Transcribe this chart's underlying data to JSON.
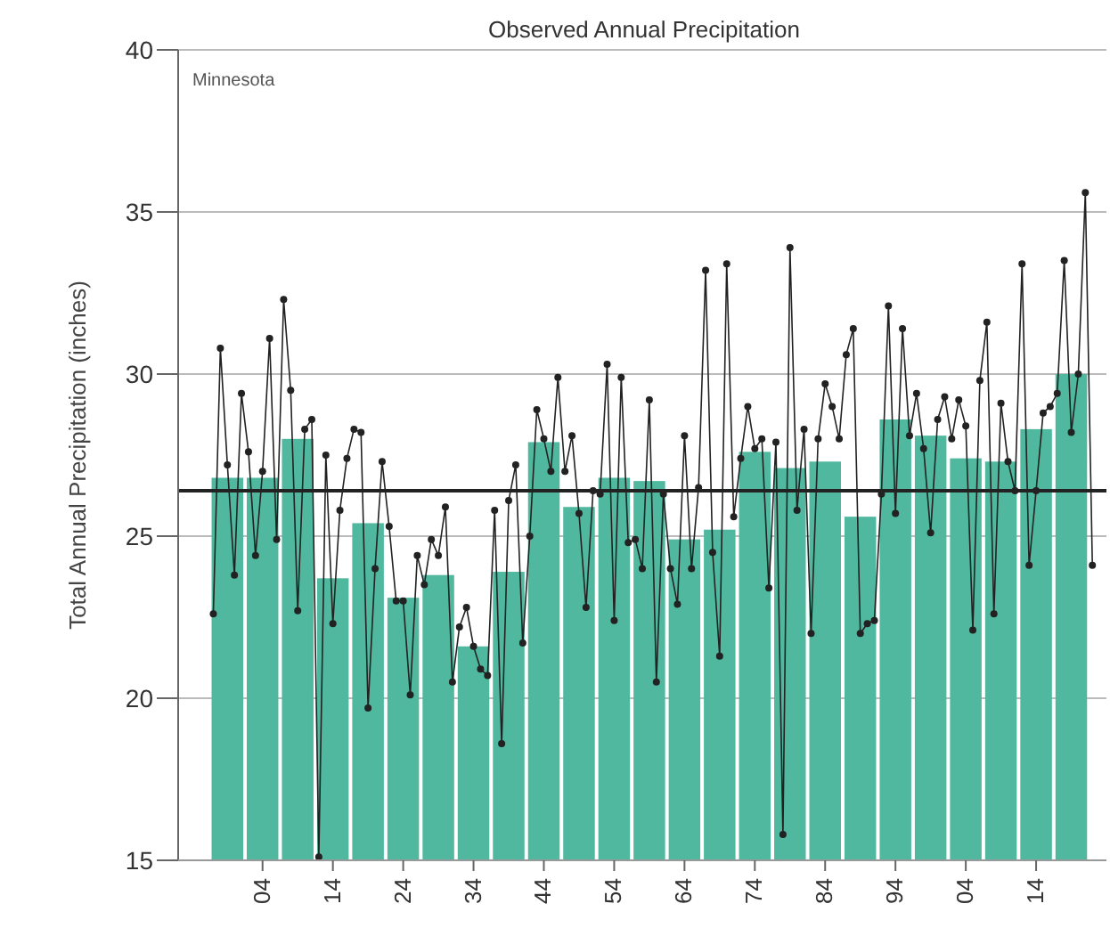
{
  "chart_data": {
    "type": "bar",
    "title": "Observed Annual Precipitation",
    "ylabel": "Total Annual Precipitation (inches)",
    "annotations": [
      "Minnesota"
    ],
    "xlim": [
      1892,
      2024
    ],
    "xticks": [
      {
        "value": 1904,
        "label": "04"
      },
      {
        "value": 1914,
        "label": "14"
      },
      {
        "value": 1924,
        "label": "24"
      },
      {
        "value": 1934,
        "label": "34"
      },
      {
        "value": 1944,
        "label": "44"
      },
      {
        "value": 1954,
        "label": "54"
      },
      {
        "value": 1964,
        "label": "64"
      },
      {
        "value": 1974,
        "label": "74"
      },
      {
        "value": 1984,
        "label": "84"
      },
      {
        "value": 1994,
        "label": "94"
      },
      {
        "value": 2004,
        "label": "04"
      },
      {
        "value": 2014,
        "label": "14"
      }
    ],
    "ylim": [
      15,
      40
    ],
    "yticks": [
      15,
      20,
      25,
      30,
      35,
      40
    ],
    "grid": "y",
    "ref_lines": [
      {
        "axis": "y",
        "value": 26.4,
        "color": "#222222"
      }
    ],
    "series": [
      {
        "color": "#4fb89f",
        "x": [
          1899,
          1904,
          1909,
          1914,
          1919,
          1924,
          1929,
          1934,
          1939,
          1944,
          1949,
          1954,
          1959,
          1964,
          1969,
          1974,
          1979,
          1984,
          1989,
          1994,
          1999,
          2004,
          2009,
          2014,
          2019
        ],
        "values": [
          26.8,
          26.8,
          28.0,
          23.7,
          25.4,
          23.1,
          23.8,
          21.6,
          23.9,
          27.9,
          25.9,
          26.8,
          26.7,
          24.9,
          25.2,
          27.6,
          27.1,
          27.3,
          25.6,
          28.6,
          28.1,
          27.4,
          27.3,
          28.3,
          30.0
        ]
      },
      {
        "type": "line",
        "color": "#222222",
        "marker": "circle",
        "x": [
          1897,
          1898,
          1899,
          1900,
          1901,
          1902,
          1903,
          1904,
          1905,
          1906,
          1907,
          1908,
          1909,
          1910,
          1911,
          1912,
          1913,
          1914,
          1915,
          1916,
          1917,
          1918,
          1919,
          1920,
          1921,
          1922,
          1923,
          1924,
          1925,
          1926,
          1927,
          1928,
          1929,
          1930,
          1931,
          1932,
          1933,
          1934,
          1935,
          1936,
          1937,
          1938,
          1939,
          1940,
          1941,
          1942,
          1943,
          1944,
          1945,
          1946,
          1947,
          1948,
          1949,
          1950,
          1951,
          1952,
          1953,
          1954,
          1955,
          1956,
          1957,
          1958,
          1959,
          1960,
          1961,
          1962,
          1963,
          1964,
          1965,
          1966,
          1967,
          1968,
          1969,
          1970,
          1971,
          1972,
          1973,
          1974,
          1975,
          1976,
          1977,
          1978,
          1979,
          1980,
          1981,
          1982,
          1983,
          1984,
          1985,
          1986,
          1987,
          1988,
          1989,
          1990,
          1991,
          1992,
          1993,
          1994,
          1995,
          1996,
          1997,
          1998,
          1999,
          2000,
          2001,
          2002,
          2003,
          2004,
          2005,
          2006,
          2007,
          2008,
          2009,
          2010,
          2011,
          2012,
          2013,
          2014,
          2015,
          2016,
          2017,
          2018,
          2019,
          2020,
          2021,
          2022
        ],
        "values": [
          22.6,
          30.8,
          27.2,
          23.8,
          29.4,
          27.6,
          24.4,
          27.0,
          31.1,
          24.9,
          32.3,
          29.5,
          22.7,
          28.3,
          28.6,
          15.1,
          27.5,
          22.3,
          25.8,
          27.4,
          28.3,
          28.2,
          19.7,
          24.0,
          27.3,
          25.3,
          23.0,
          23.0,
          20.1,
          24.4,
          23.5,
          24.9,
          24.4,
          25.9,
          20.5,
          22.2,
          22.8,
          21.6,
          20.9,
          20.7,
          25.8,
          18.6,
          26.1,
          27.2,
          21.7,
          25.0,
          28.9,
          28.0,
          27.0,
          29.9,
          27.0,
          28.1,
          25.7,
          22.8,
          26.4,
          26.3,
          30.3,
          22.4,
          29.9,
          24.8,
          24.9,
          24.0,
          29.2,
          20.5,
          26.3,
          24.0,
          22.9,
          28.1,
          24.0,
          26.5,
          33.2,
          24.5,
          21.3,
          33.4,
          25.6,
          27.4,
          29.0,
          27.7,
          28.0,
          23.4,
          27.9,
          15.8,
          33.9,
          25.8,
          28.3,
          22.0,
          28.0,
          29.7,
          29.0,
          28.0,
          30.6,
          31.4,
          22.0,
          22.3,
          22.4,
          26.3,
          32.1,
          25.7,
          31.4,
          28.1,
          29.4,
          27.7,
          25.1,
          28.6,
          29.3,
          28.0,
          29.2,
          28.4,
          22.1,
          29.8,
          31.6,
          22.6,
          29.1,
          27.3,
          26.4,
          33.4,
          24.1,
          26.4,
          28.8,
          29.0,
          29.4,
          33.5,
          28.2,
          30.0,
          35.6,
          24.1
        ]
      }
    ]
  }
}
